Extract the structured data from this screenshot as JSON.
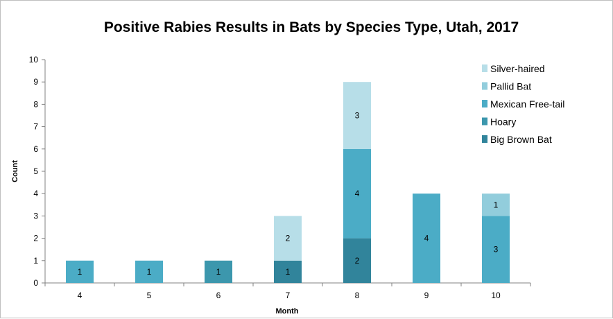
{
  "chart_data": {
    "type": "bar",
    "stacked": true,
    "title": "Positive Rabies Results in Bats by Species Type,  Utah, 2017",
    "xlabel": "Month",
    "ylabel": "Count",
    "ylim": [
      0,
      10
    ],
    "yticks": [
      0,
      1,
      2,
      3,
      4,
      5,
      6,
      7,
      8,
      9,
      10
    ],
    "categories": [
      "4",
      "5",
      "6",
      "7",
      "8",
      "9",
      "10"
    ],
    "grid": false,
    "legend_position": "right",
    "series": [
      {
        "name": "Big Brown Bat",
        "color": "#31849b",
        "values": [
          0,
          0,
          0,
          1,
          2,
          0,
          0
        ]
      },
      {
        "name": "Hoary",
        "color": "#3c97ad",
        "values": [
          0,
          0,
          1,
          0,
          0,
          0,
          0
        ]
      },
      {
        "name": "Mexican Free-tail",
        "color": "#4bacc6",
        "values": [
          1,
          1,
          0,
          0,
          4,
          4,
          3
        ]
      },
      {
        "name": "Pallid Bat",
        "color": "#92cddc",
        "values": [
          0,
          0,
          0,
          0,
          0,
          0,
          1
        ]
      },
      {
        "name": "Silver-haired",
        "color": "#b7dee8",
        "values": [
          0,
          0,
          0,
          2,
          3,
          0,
          0
        ]
      }
    ],
    "legend_order": [
      "Silver-haired",
      "Pallid Bat",
      "Mexican Free-tail",
      "Hoary",
      "Big Brown Bat"
    ]
  }
}
